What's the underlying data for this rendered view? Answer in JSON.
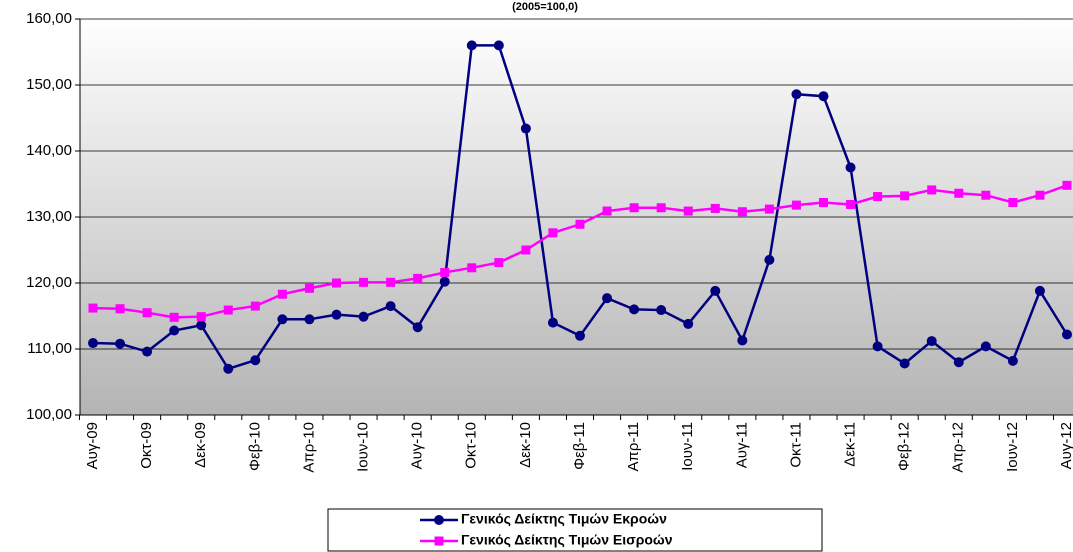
{
  "chart_data": {
    "type": "line",
    "title": "(2005=100,0)",
    "categories": [
      "Αυγ-09",
      null,
      "Οκτ-09",
      null,
      "Δεκ-09",
      null,
      "Φεβ-10",
      null,
      "Απρ-10",
      null,
      "Ιουν-10",
      null,
      "Αυγ-10",
      null,
      "Οκτ-10",
      null,
      "Δεκ-10",
      null,
      "Φεβ-11",
      null,
      "Απρ-11",
      null,
      "Ιουν-11",
      null,
      "Αυγ-11",
      null,
      "Οκτ-11",
      null,
      "Δεκ-11",
      null,
      "Φεβ-12",
      null,
      "Απρ-12",
      null,
      "Ιουν-12",
      null,
      "Αυγ-12"
    ],
    "series": [
      {
        "name": "Γενικός Δείκτης Τιμών Εκροών",
        "color": "#000080",
        "marker": "circle",
        "values": [
          110.9,
          110.8,
          109.6,
          112.8,
          113.6,
          107.0,
          108.3,
          114.5,
          114.5,
          115.2,
          114.9,
          116.5,
          113.3,
          120.2,
          156.0,
          156.0,
          143.4,
          114.0,
          112.0,
          117.7,
          116.0,
          115.9,
          113.8,
          118.8,
          111.3,
          123.5,
          148.6,
          148.3,
          137.5,
          110.4,
          107.8,
          111.2,
          108.0,
          110.4,
          108.2,
          118.8,
          112.2
        ]
      },
      {
        "name": "Γενικός Δείκτης Τιμών Εισροών",
        "color": "#ff00ff",
        "marker": "square",
        "values": [
          116.2,
          116.1,
          115.5,
          114.8,
          114.9,
          115.9,
          116.5,
          118.3,
          119.2,
          120.0,
          120.1,
          120.1,
          120.7,
          121.6,
          122.3,
          123.1,
          125.0,
          127.6,
          128.9,
          130.9,
          131.4,
          131.4,
          130.9,
          131.3,
          130.8,
          131.2,
          131.8,
          132.2,
          131.9,
          133.1,
          133.2,
          134.1,
          133.6,
          133.3,
          132.2,
          133.3,
          134.8
        ]
      }
    ],
    "ylim": [
      100,
      160
    ],
    "yticks": [
      {
        "value": 100,
        "label": "100,00"
      },
      {
        "value": 110,
        "label": "110,00"
      },
      {
        "value": 120,
        "label": "120,00"
      },
      {
        "value": 130,
        "label": "130,00"
      },
      {
        "value": 140,
        "label": "140,00"
      },
      {
        "value": 150,
        "label": "150,00"
      },
      {
        "value": 160,
        "label": "160,00"
      }
    ],
    "grid": true
  }
}
